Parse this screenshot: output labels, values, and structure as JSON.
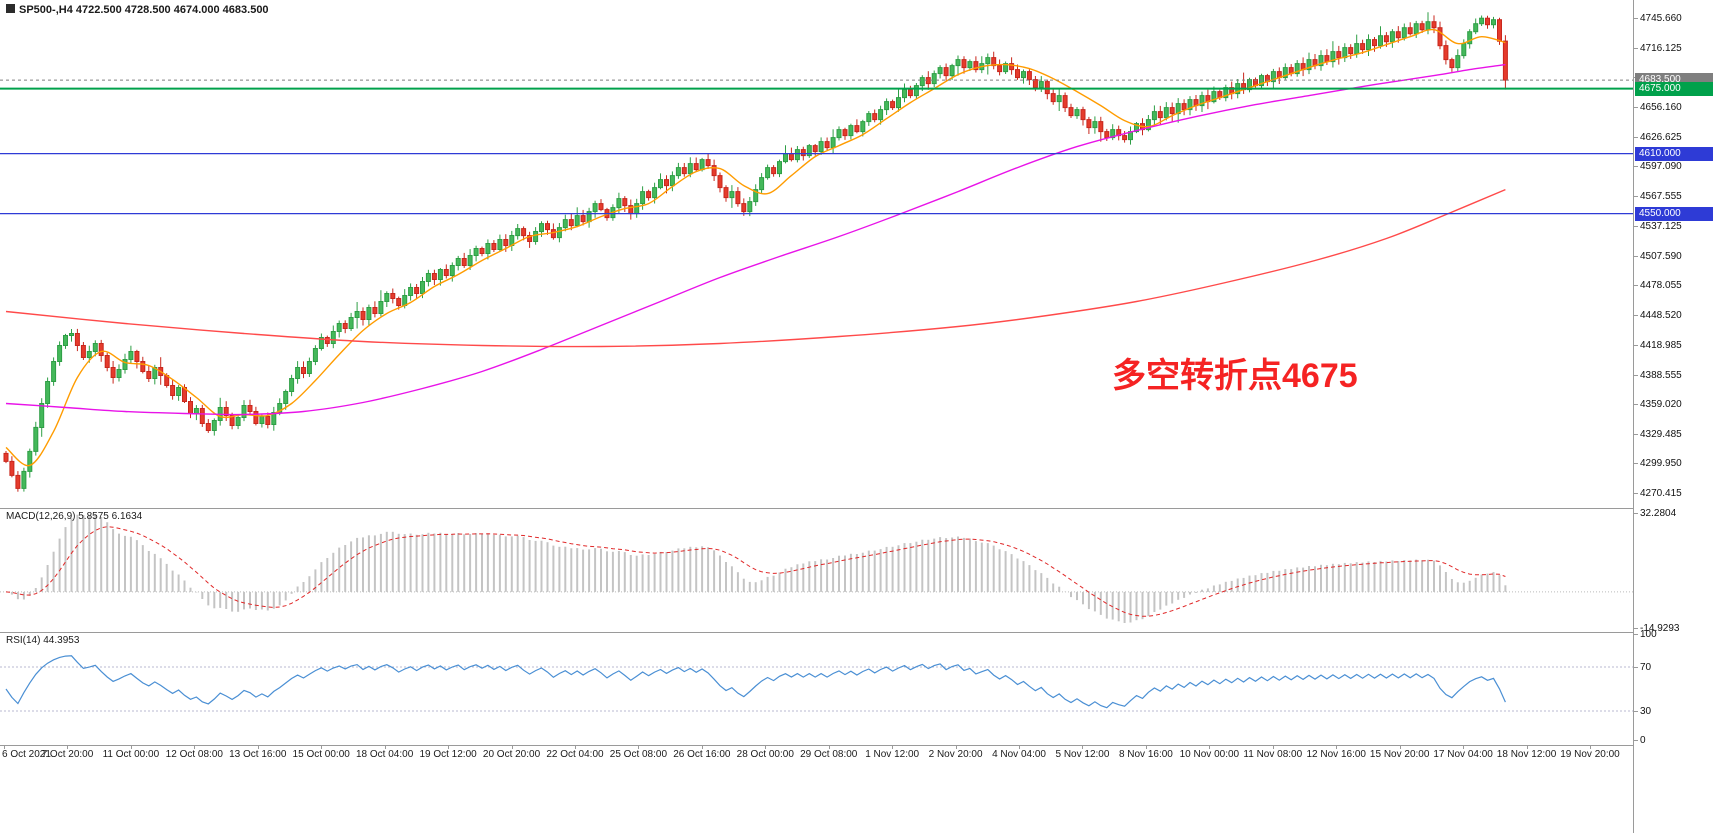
{
  "header": {
    "symbol_title": "SP500-,H4 4722.500 4728.500 4674.000 4683.500"
  },
  "annotation": {
    "text": "多空转折点4675",
    "color": "#f52323"
  },
  "axes": {
    "price_ticks": [
      "4745.660",
      "4716.125",
      "4686.590",
      "4656.160",
      "4626.625",
      "4597.090",
      "4567.555",
      "4537.125",
      "4507.590",
      "4478.055",
      "4448.520",
      "4418.985",
      "4388.555",
      "4359.020",
      "4329.485",
      "4299.950",
      "4270.415"
    ],
    "time_ticks": [
      "6 Oct 2021",
      "7 Oct 20:00",
      "11 Oct 00:00",
      "12 Oct 08:00",
      "13 Oct 16:00",
      "15 Oct 00:00",
      "18 Oct 04:00",
      "19 Oct 12:00",
      "20 Oct 20:00",
      "22 Oct 04:00",
      "25 Oct 08:00",
      "26 Oct 16:00",
      "28 Oct 00:00",
      "29 Oct 08:00",
      "1 Nov 12:00",
      "2 Nov 20:00",
      "4 Nov 04:00",
      "5 Nov 12:00",
      "8 Nov 16:00",
      "10 Nov 00:00",
      "11 Nov 08:00",
      "12 Nov 16:00",
      "15 Nov 20:00",
      "17 Nov 04:00",
      "18 Nov 12:00",
      "19 Nov 20:00"
    ]
  },
  "price_lines": [
    {
      "price": 4683.5,
      "label": "4683.500",
      "color": "#7f7f7f",
      "style": "dashed",
      "width": 1
    },
    {
      "price": 4675.0,
      "label": "4675.000",
      "color": "#00A14B",
      "style": "solid",
      "width": 2
    },
    {
      "price": 4610.0,
      "label": "4610.000",
      "color": "#2E3BD6",
      "style": "solid",
      "width": 1.2
    },
    {
      "price": 4550.0,
      "label": "4550.000",
      "color": "#2E3BD6",
      "style": "solid",
      "width": 1.2
    }
  ],
  "indicators": {
    "macd": {
      "label": "MACD(12,26,9) 5.8575 6.1634",
      "fast": 12,
      "slow": 26,
      "signal": 9,
      "axis_ticks": [
        "32.2804",
        "-14.9293"
      ],
      "histogram_color": "#c4c4c4",
      "signal_color": "#e02828"
    },
    "rsi": {
      "label": "RSI(14) 44.3953",
      "period": 14,
      "axis_ticks": [
        "100",
        "70",
        "30",
        "0"
      ],
      "levels": [
        70,
        30
      ],
      "line_color": "#4a8fd4",
      "level_color": "#b9b9d0"
    }
  },
  "chart_data": {
    "type": "candlestick",
    "title": "SP500-,H4",
    "ohlc_current": {
      "open": 4722.5,
      "high": 4728.5,
      "low": 4674.0,
      "close": 4683.5
    },
    "ylim": [
      4270.415,
      4745.66
    ],
    "up_color": "#44b85a",
    "up_border": "#2e9e45",
    "down_color": "#e53b2c",
    "down_border": "#c8271d",
    "closes": [
      4302,
      4288,
      4275,
      4292,
      4312,
      4336,
      4360,
      4382,
      4402,
      4418,
      4428,
      4430,
      4418,
      4406,
      4412,
      4420,
      4408,
      4396,
      4386,
      4394,
      4404,
      4412,
      4402,
      4392,
      4385,
      4396,
      4388,
      4378,
      4368,
      4376,
      4362,
      4350,
      4355,
      4340,
      4333,
      4343,
      4356,
      4348,
      4338,
      4346,
      4358,
      4352,
      4340,
      4347,
      4339,
      4351,
      4360,
      4372,
      4385,
      4396,
      4390,
      4402,
      4415,
      4426,
      4420,
      4432,
      4440,
      4435,
      4446,
      4452,
      4444,
      4456,
      4450,
      4462,
      4470,
      4465,
      4458,
      4468,
      4476,
      4470,
      4482,
      4490,
      4484,
      4494,
      4488,
      4498,
      4505,
      4498,
      4508,
      4515,
      4510,
      4520,
      4514,
      4524,
      4518,
      4528,
      4535,
      4528,
      4522,
      4532,
      4540,
      4534,
      4526,
      4536,
      4544,
      4538,
      4548,
      4542,
      4552,
      4560,
      4554,
      4546,
      4556,
      4565,
      4558,
      4550,
      4560,
      4572,
      4566,
      4576,
      4584,
      4578,
      4588,
      4596,
      4590,
      4600,
      4594,
      4604,
      4598,
      4588,
      4576,
      4566,
      4572,
      4560,
      4552,
      4562,
      4574,
      4586,
      4596,
      4590,
      4602,
      4610,
      4604,
      4614,
      4608,
      4618,
      4612,
      4622,
      4616,
      4626,
      4634,
      4628,
      4638,
      4632,
      4642,
      4650,
      4644,
      4654,
      4662,
      4656,
      4666,
      4674,
      4668,
      4678,
      4686,
      4680,
      4690,
      4696,
      4688,
      4698,
      4704,
      4696,
      4702,
      4694,
      4700,
      4706,
      4698,
      4692,
      4700,
      4694,
      4686,
      4692,
      4684,
      4676,
      4682,
      4670,
      4662,
      4668,
      4656,
      4648,
      4654,
      4644,
      4636,
      4642,
      4632,
      4626,
      4634,
      4628,
      4624,
      4632,
      4640,
      4634,
      4644,
      4652,
      4646,
      4656,
      4650,
      4660,
      4654,
      4664,
      4658,
      4668,
      4662,
      4672,
      4666,
      4676,
      4670,
      4680,
      4674,
      4684,
      4678,
      4688,
      4682,
      4692,
      4686,
      4696,
      4690,
      4700,
      4694,
      4704,
      4698,
      4708,
      4702,
      4712,
      4706,
      4716,
      4710,
      4720,
      4714,
      4724,
      4718,
      4728,
      4722,
      4732,
      4726,
      4736,
      4730,
      4740,
      4734,
      4742,
      4736,
      4718,
      4704,
      4696,
      4708,
      4720,
      4732,
      4740,
      4745.5,
      4739,
      4744,
      4722.5,
      4683.5
    ],
    "moving_averages": [
      {
        "name": "ma-fast",
        "color": "#FF9C00",
        "points": [
          [
            0,
            4316
          ],
          [
            4,
            4298
          ],
          [
            8,
            4332
          ],
          [
            12,
            4386
          ],
          [
            16,
            4412
          ],
          [
            20,
            4401
          ],
          [
            24,
            4398
          ],
          [
            28,
            4384
          ],
          [
            32,
            4366
          ],
          [
            36,
            4347
          ],
          [
            40,
            4349
          ],
          [
            44,
            4348
          ],
          [
            48,
            4360
          ],
          [
            52,
            4383
          ],
          [
            56,
            4409
          ],
          [
            60,
            4433
          ],
          [
            64,
            4450
          ],
          [
            68,
            4461
          ],
          [
            72,
            4477
          ],
          [
            76,
            4489
          ],
          [
            80,
            4503
          ],
          [
            84,
            4515
          ],
          [
            88,
            4527
          ],
          [
            92,
            4531
          ],
          [
            96,
            4537
          ],
          [
            100,
            4547
          ],
          [
            104,
            4555
          ],
          [
            108,
            4560
          ],
          [
            112,
            4577
          ],
          [
            116,
            4592
          ],
          [
            120,
            4595
          ],
          [
            124,
            4578
          ],
          [
            128,
            4570
          ],
          [
            132,
            4588
          ],
          [
            136,
            4607
          ],
          [
            140,
            4618
          ],
          [
            144,
            4629
          ],
          [
            148,
            4645
          ],
          [
            152,
            4661
          ],
          [
            156,
            4675
          ],
          [
            160,
            4689
          ],
          [
            164,
            4697
          ],
          [
            168,
            4699
          ],
          [
            172,
            4695
          ],
          [
            176,
            4685
          ],
          [
            180,
            4672
          ],
          [
            184,
            4658
          ],
          [
            188,
            4643
          ],
          [
            192,
            4637
          ],
          [
            196,
            4648
          ],
          [
            200,
            4658
          ],
          [
            204,
            4666
          ],
          [
            208,
            4674
          ],
          [
            212,
            4682
          ],
          [
            216,
            4690
          ],
          [
            220,
            4698
          ],
          [
            224,
            4705
          ],
          [
            228,
            4711
          ],
          [
            232,
            4719
          ],
          [
            236,
            4727
          ],
          [
            240,
            4734
          ],
          [
            244,
            4720
          ],
          [
            248,
            4727
          ],
          [
            252,
            4721
          ]
        ]
      },
      {
        "name": "ma-mid",
        "color": "#E813E8",
        "points": [
          [
            0,
            4360
          ],
          [
            10,
            4356
          ],
          [
            20,
            4352
          ],
          [
            30,
            4350
          ],
          [
            40,
            4349
          ],
          [
            50,
            4352
          ],
          [
            60,
            4361
          ],
          [
            70,
            4375
          ],
          [
            80,
            4392
          ],
          [
            90,
            4414
          ],
          [
            100,
            4438
          ],
          [
            110,
            4462
          ],
          [
            120,
            4486
          ],
          [
            130,
            4507
          ],
          [
            140,
            4527
          ],
          [
            150,
            4549
          ],
          [
            160,
            4572
          ],
          [
            170,
            4596
          ],
          [
            180,
            4617
          ],
          [
            190,
            4633
          ],
          [
            200,
            4647
          ],
          [
            210,
            4659
          ],
          [
            220,
            4669
          ],
          [
            230,
            4679
          ],
          [
            240,
            4688
          ],
          [
            246,
            4694
          ],
          [
            252,
            4699
          ]
        ]
      },
      {
        "name": "ma-slow",
        "color": "#FF4A4A",
        "points": [
          [
            0,
            4452
          ],
          [
            20,
            4440
          ],
          [
            40,
            4430
          ],
          [
            60,
            4422
          ],
          [
            80,
            4418
          ],
          [
            100,
            4417
          ],
          [
            120,
            4420
          ],
          [
            140,
            4427
          ],
          [
            160,
            4437
          ],
          [
            175,
            4448
          ],
          [
            190,
            4462
          ],
          [
            205,
            4481
          ],
          [
            220,
            4503
          ],
          [
            232,
            4525
          ],
          [
            242,
            4549
          ],
          [
            252,
            4574
          ]
        ]
      }
    ]
  }
}
